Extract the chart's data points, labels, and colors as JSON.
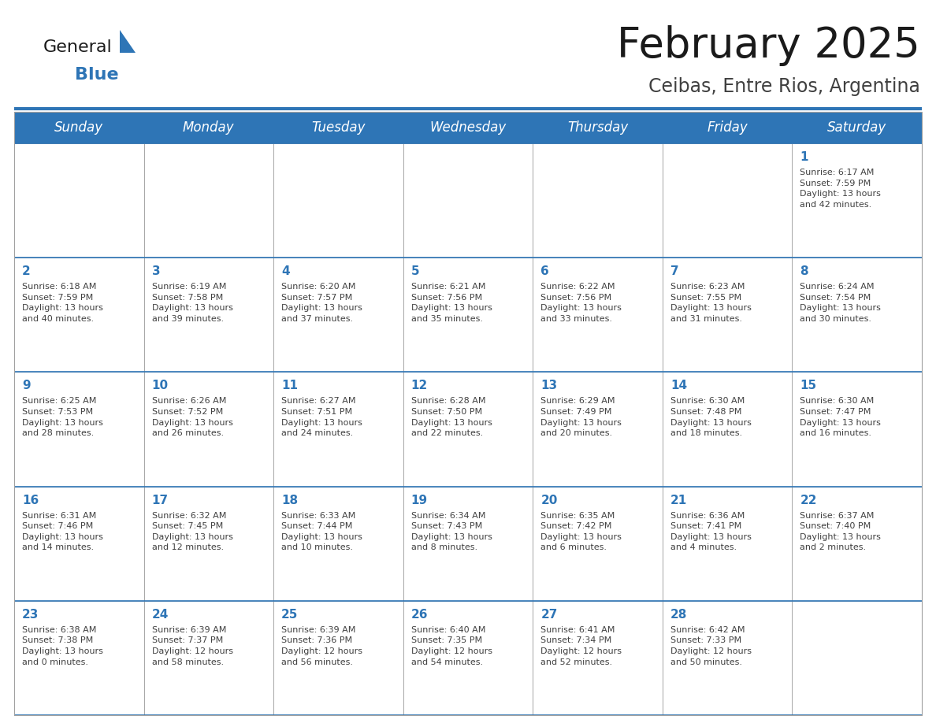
{
  "title": "February 2025",
  "subtitle": "Ceibas, Entre Rios, Argentina",
  "header_bg": "#2E75B6",
  "header_text_color": "#FFFFFF",
  "cell_bg": "#FFFFFF",
  "day_number_color": "#2E75B6",
  "text_color": "#404040",
  "border_color": "#A0A0A0",
  "line_color": "#2E75B6",
  "days_of_week": [
    "Sunday",
    "Monday",
    "Tuesday",
    "Wednesday",
    "Thursday",
    "Friday",
    "Saturday"
  ],
  "weeks": [
    [
      {
        "day": null,
        "info": null
      },
      {
        "day": null,
        "info": null
      },
      {
        "day": null,
        "info": null
      },
      {
        "day": null,
        "info": null
      },
      {
        "day": null,
        "info": null
      },
      {
        "day": null,
        "info": null
      },
      {
        "day": "1",
        "info": "Sunrise: 6:17 AM\nSunset: 7:59 PM\nDaylight: 13 hours\nand 42 minutes."
      }
    ],
    [
      {
        "day": "2",
        "info": "Sunrise: 6:18 AM\nSunset: 7:59 PM\nDaylight: 13 hours\nand 40 minutes."
      },
      {
        "day": "3",
        "info": "Sunrise: 6:19 AM\nSunset: 7:58 PM\nDaylight: 13 hours\nand 39 minutes."
      },
      {
        "day": "4",
        "info": "Sunrise: 6:20 AM\nSunset: 7:57 PM\nDaylight: 13 hours\nand 37 minutes."
      },
      {
        "day": "5",
        "info": "Sunrise: 6:21 AM\nSunset: 7:56 PM\nDaylight: 13 hours\nand 35 minutes."
      },
      {
        "day": "6",
        "info": "Sunrise: 6:22 AM\nSunset: 7:56 PM\nDaylight: 13 hours\nand 33 minutes."
      },
      {
        "day": "7",
        "info": "Sunrise: 6:23 AM\nSunset: 7:55 PM\nDaylight: 13 hours\nand 31 minutes."
      },
      {
        "day": "8",
        "info": "Sunrise: 6:24 AM\nSunset: 7:54 PM\nDaylight: 13 hours\nand 30 minutes."
      }
    ],
    [
      {
        "day": "9",
        "info": "Sunrise: 6:25 AM\nSunset: 7:53 PM\nDaylight: 13 hours\nand 28 minutes."
      },
      {
        "day": "10",
        "info": "Sunrise: 6:26 AM\nSunset: 7:52 PM\nDaylight: 13 hours\nand 26 minutes."
      },
      {
        "day": "11",
        "info": "Sunrise: 6:27 AM\nSunset: 7:51 PM\nDaylight: 13 hours\nand 24 minutes."
      },
      {
        "day": "12",
        "info": "Sunrise: 6:28 AM\nSunset: 7:50 PM\nDaylight: 13 hours\nand 22 minutes."
      },
      {
        "day": "13",
        "info": "Sunrise: 6:29 AM\nSunset: 7:49 PM\nDaylight: 13 hours\nand 20 minutes."
      },
      {
        "day": "14",
        "info": "Sunrise: 6:30 AM\nSunset: 7:48 PM\nDaylight: 13 hours\nand 18 minutes."
      },
      {
        "day": "15",
        "info": "Sunrise: 6:30 AM\nSunset: 7:47 PM\nDaylight: 13 hours\nand 16 minutes."
      }
    ],
    [
      {
        "day": "16",
        "info": "Sunrise: 6:31 AM\nSunset: 7:46 PM\nDaylight: 13 hours\nand 14 minutes."
      },
      {
        "day": "17",
        "info": "Sunrise: 6:32 AM\nSunset: 7:45 PM\nDaylight: 13 hours\nand 12 minutes."
      },
      {
        "day": "18",
        "info": "Sunrise: 6:33 AM\nSunset: 7:44 PM\nDaylight: 13 hours\nand 10 minutes."
      },
      {
        "day": "19",
        "info": "Sunrise: 6:34 AM\nSunset: 7:43 PM\nDaylight: 13 hours\nand 8 minutes."
      },
      {
        "day": "20",
        "info": "Sunrise: 6:35 AM\nSunset: 7:42 PM\nDaylight: 13 hours\nand 6 minutes."
      },
      {
        "day": "21",
        "info": "Sunrise: 6:36 AM\nSunset: 7:41 PM\nDaylight: 13 hours\nand 4 minutes."
      },
      {
        "day": "22",
        "info": "Sunrise: 6:37 AM\nSunset: 7:40 PM\nDaylight: 13 hours\nand 2 minutes."
      }
    ],
    [
      {
        "day": "23",
        "info": "Sunrise: 6:38 AM\nSunset: 7:38 PM\nDaylight: 13 hours\nand 0 minutes."
      },
      {
        "day": "24",
        "info": "Sunrise: 6:39 AM\nSunset: 7:37 PM\nDaylight: 12 hours\nand 58 minutes."
      },
      {
        "day": "25",
        "info": "Sunrise: 6:39 AM\nSunset: 7:36 PM\nDaylight: 12 hours\nand 56 minutes."
      },
      {
        "day": "26",
        "info": "Sunrise: 6:40 AM\nSunset: 7:35 PM\nDaylight: 12 hours\nand 54 minutes."
      },
      {
        "day": "27",
        "info": "Sunrise: 6:41 AM\nSunset: 7:34 PM\nDaylight: 12 hours\nand 52 minutes."
      },
      {
        "day": "28",
        "info": "Sunrise: 6:42 AM\nSunset: 7:33 PM\nDaylight: 12 hours\nand 50 minutes."
      },
      {
        "day": null,
        "info": null
      }
    ]
  ],
  "logo_general_color": "#1a1a1a",
  "logo_blue_color": "#2E75B6",
  "title_fontsize": 38,
  "subtitle_fontsize": 17,
  "header_fontsize": 12,
  "day_num_fontsize": 11,
  "info_fontsize": 8.0
}
